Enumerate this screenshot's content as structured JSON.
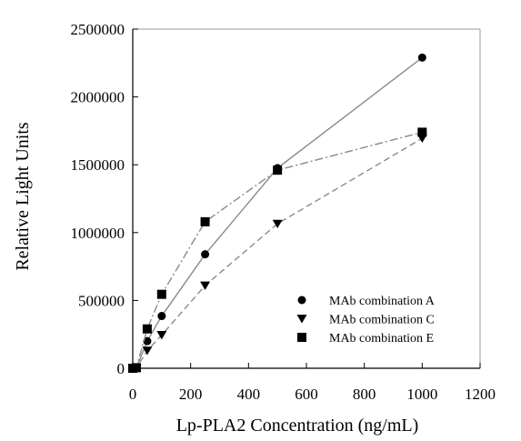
{
  "chart_data": {
    "type": "line",
    "xlabel": "Lp-PLA2 Concentration (ng/mL)",
    "ylabel": "Relative Light Units",
    "xlim": [
      0,
      1200
    ],
    "ylim": [
      0,
      2500000
    ],
    "x_ticks": [
      "0",
      "200",
      "400",
      "600",
      "800",
      "1000",
      "1200"
    ],
    "x_tick_values": [
      0,
      200,
      400,
      600,
      800,
      1000,
      1200
    ],
    "y_ticks": [
      "0",
      "500000",
      "1000000",
      "1500000",
      "2000000",
      "2500000"
    ],
    "y_tick_values": [
      0,
      500000,
      1000000,
      1500000,
      2000000,
      2500000
    ],
    "grid": false,
    "legend_position": "bottom-right",
    "series": [
      {
        "name": "MAb combination A",
        "marker": "circle",
        "line_style": "solid",
        "x": [
          0,
          12.5,
          50,
          100,
          250,
          500,
          1000
        ],
        "values": [
          0,
          3000,
          200000,
          385000,
          840000,
          1475000,
          2290000
        ]
      },
      {
        "name": "MAb combination C",
        "marker": "triangle-down",
        "line_style": "dashed",
        "x": [
          0,
          12.5,
          50,
          100,
          250,
          500,
          1000
        ],
        "values": [
          0,
          2000,
          130000,
          245000,
          610000,
          1065000,
          1695000
        ]
      },
      {
        "name": "MAb combination E",
        "marker": "square",
        "line_style": "dashdot",
        "x": [
          0,
          12.5,
          50,
          100,
          250,
          500,
          1000
        ],
        "values": [
          0,
          4000,
          290000,
          545000,
          1080000,
          1460000,
          1740000
        ]
      }
    ]
  },
  "colors": {
    "line": "#8a8a8a",
    "marker": "#000000",
    "axis": "#000000",
    "frame": "#9a9a9a"
  }
}
